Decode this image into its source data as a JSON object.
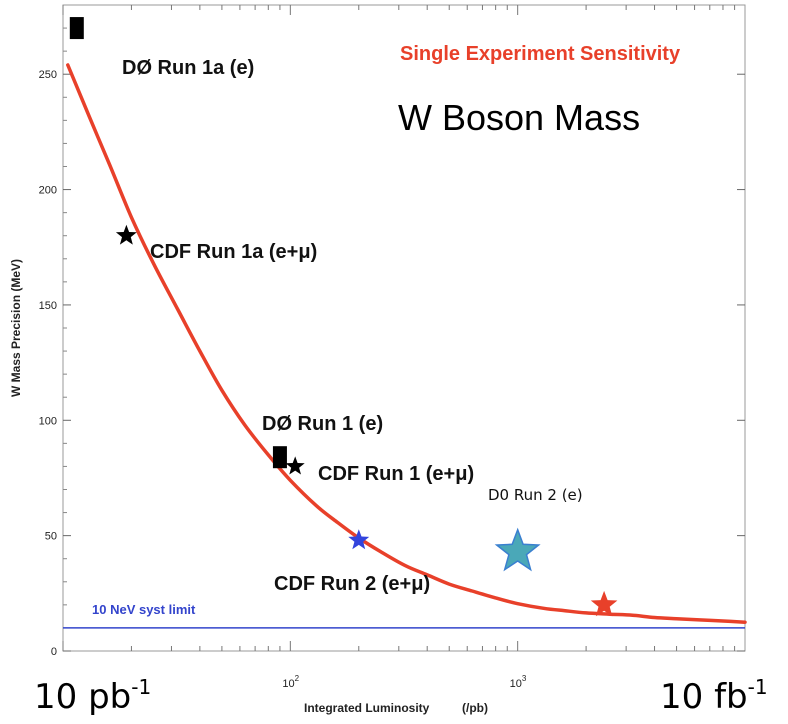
{
  "chart_data": {
    "type": "scatter",
    "title": "W Boson Mass",
    "subtitle": "Single Experiment Sensitivity",
    "xlabel": "Integrated Luminosity",
    "xunit": "(/pb)",
    "ylabel": "W Mass Precision (MeV)",
    "xscale": "log",
    "xlim": [
      10,
      10000
    ],
    "ylim": [
      0,
      280
    ],
    "x_ticks": [
      {
        "value": 100,
        "base": "10",
        "exp": "2"
      },
      {
        "value": 1000,
        "base": "10",
        "exp": "3"
      }
    ],
    "y_ticks": [
      0,
      50,
      100,
      150,
      200,
      250
    ],
    "curve": {
      "name": "sensitivity",
      "color": "#e8402a",
      "x": [
        10.5,
        13,
        16,
        20,
        25,
        32,
        40,
        50,
        63,
        80,
        100,
        130,
        160,
        200,
        250,
        320,
        400,
        500,
        630,
        800,
        1000,
        1300,
        1600,
        2000,
        2500,
        3200,
        4000,
        5000,
        6300,
        8000,
        10000
      ],
      "y": [
        254,
        232,
        211,
        188,
        168,
        148,
        130,
        113,
        98,
        85,
        74,
        63,
        56,
        49,
        43,
        37,
        33,
        29,
        26,
        23,
        20.5,
        18.5,
        17.5,
        16.5,
        16,
        15.5,
        14.5,
        14,
        13.5,
        13,
        12.5
      ]
    },
    "syst_limit": {
      "value": 10,
      "label": "10 NeV syst limit",
      "color": "#3344cc"
    },
    "points": [
      {
        "name": "DØ Run 1a (e)",
        "marker": "square",
        "x": 11.5,
        "y": 270,
        "color": "#000000"
      },
      {
        "name": "CDF Run 1a (e+μ)",
        "marker": "star",
        "x": 19,
        "y": 180,
        "color": "#000000"
      },
      {
        "name": "DØ Run 1 (e)",
        "marker": "square",
        "x": 90,
        "y": 84,
        "color": "#000000"
      },
      {
        "name": "CDF Run 1 (e+μ)",
        "marker": "star",
        "x": 105,
        "y": 80,
        "color": "#000000"
      },
      {
        "name": "CDF Run 2 (e+μ)",
        "marker": "star",
        "x": 200,
        "y": 48,
        "color": "#3344dd"
      },
      {
        "name": "D0 Run 2 (e)",
        "marker": "star",
        "x": 1000,
        "y": 43,
        "color": "#4aa8b8"
      },
      {
        "name": "",
        "marker": "star",
        "x": 2400,
        "y": 20,
        "color": "#e8402a"
      }
    ]
  },
  "corner_left": {
    "base": "10 pb",
    "exp": "-1"
  },
  "corner_right": {
    "base": "10 fb",
    "exp": "-1"
  }
}
